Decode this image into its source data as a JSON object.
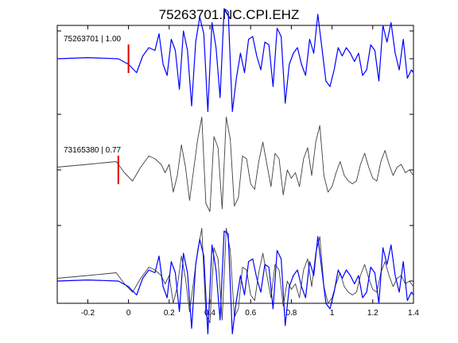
{
  "chart_data": {
    "type": "line",
    "title": "75263701.NC.CPI.EHZ",
    "xlabel": "",
    "ylabel": "",
    "xlim": [
      -0.35,
      1.4
    ],
    "xticks": [
      -0.2,
      0,
      0.2,
      0.4,
      0.6,
      0.8,
      1,
      1.2,
      1.4
    ],
    "xtick_labels": [
      "-0.2",
      "0",
      "0.2",
      "0.4",
      "0.6",
      "0.8",
      "1",
      "1.2",
      "1.4"
    ],
    "ylim": [
      -2.4,
      2.6
    ],
    "grid": false,
    "colors": {
      "primary": "#0000ff",
      "secondary": "#404040",
      "pick": "#e00000",
      "axes": "#000000"
    },
    "traces": [
      {
        "name": "75263701 | 1.00",
        "label": "75263701 | 1.00",
        "color": "#0000ff",
        "offset": 2.0,
        "pick_time": 0.0,
        "x": [
          -0.35,
          -0.2,
          -0.05,
          0.0,
          0.04,
          0.07,
          0.1,
          0.13,
          0.15,
          0.17,
          0.19,
          0.21,
          0.23,
          0.25,
          0.27,
          0.29,
          0.31,
          0.33,
          0.35,
          0.37,
          0.39,
          0.41,
          0.43,
          0.45,
          0.47,
          0.49,
          0.51,
          0.53,
          0.55,
          0.57,
          0.59,
          0.61,
          0.63,
          0.65,
          0.67,
          0.69,
          0.71,
          0.73,
          0.75,
          0.77,
          0.79,
          0.81,
          0.83,
          0.85,
          0.87,
          0.89,
          0.91,
          0.93,
          0.95,
          0.97,
          0.99,
          1.01,
          1.03,
          1.05,
          1.07,
          1.09,
          1.11,
          1.13,
          1.15,
          1.17,
          1.19,
          1.21,
          1.23,
          1.25,
          1.27,
          1.29,
          1.31,
          1.33,
          1.35,
          1.37,
          1.39,
          1.4
        ],
        "y": [
          0.0,
          0.02,
          0.0,
          -0.1,
          -0.25,
          0.05,
          0.2,
          0.15,
          0.45,
          -0.1,
          -0.3,
          0.35,
          0.15,
          -0.55,
          0.5,
          0.15,
          -0.85,
          0.3,
          0.75,
          0.45,
          -0.95,
          0.65,
          0.2,
          -0.7,
          0.9,
          0.85,
          -0.95,
          -0.35,
          0.1,
          -0.25,
          0.35,
          0.4,
          0.05,
          -0.2,
          0.3,
          0.25,
          -0.5,
          0.55,
          0.4,
          -0.8,
          -0.1,
          0.1,
          0.2,
          -0.1,
          -0.3,
          0.35,
          0.1,
          0.8,
          0.2,
          -0.4,
          -0.5,
          -0.2,
          0.2,
          0.05,
          0.2,
          0.1,
          -0.05,
          0.1,
          -0.3,
          -0.2,
          0.25,
          0.15,
          -0.4,
          0.6,
          0.3,
          0.65,
          0.1,
          -0.2,
          0.35,
          -0.35,
          -0.2,
          -0.25
        ]
      },
      {
        "name": "73165380 | 0.77",
        "label": "73165380 | 0.77",
        "color": "#404040",
        "offset": 0.0,
        "pick_time": -0.05,
        "x": [
          -0.35,
          -0.2,
          -0.06,
          -0.02,
          0.02,
          0.06,
          0.1,
          0.13,
          0.16,
          0.18,
          0.2,
          0.22,
          0.24,
          0.26,
          0.28,
          0.3,
          0.32,
          0.34,
          0.36,
          0.38,
          0.4,
          0.42,
          0.44,
          0.46,
          0.48,
          0.5,
          0.52,
          0.54,
          0.56,
          0.58,
          0.6,
          0.62,
          0.64,
          0.66,
          0.68,
          0.7,
          0.72,
          0.74,
          0.76,
          0.78,
          0.8,
          0.82,
          0.84,
          0.86,
          0.88,
          0.9,
          0.92,
          0.94,
          0.96,
          0.98,
          1.0,
          1.02,
          1.04,
          1.06,
          1.08,
          1.1,
          1.12,
          1.14,
          1.16,
          1.18,
          1.2,
          1.22,
          1.24,
          1.26,
          1.28,
          1.3,
          1.32,
          1.34,
          1.36,
          1.38,
          1.4
        ],
        "y": [
          0.05,
          0.1,
          0.15,
          -0.05,
          -0.2,
          0.05,
          0.25,
          0.2,
          0.1,
          -0.05,
          0.1,
          -0.4,
          -0.1,
          0.45,
          0.05,
          -0.55,
          0.0,
          0.55,
          0.95,
          -0.6,
          -0.75,
          0.6,
          0.4,
          -0.7,
          0.95,
          0.55,
          -0.65,
          -0.5,
          0.25,
          0.2,
          -0.25,
          -0.35,
          0.15,
          0.5,
          0.1,
          -0.3,
          0.3,
          0.2,
          -0.45,
          0.0,
          -0.15,
          -0.05,
          -0.3,
          0.2,
          0.4,
          -0.1,
          0.5,
          0.8,
          -0.1,
          -0.4,
          -0.3,
          -0.05,
          0.15,
          -0.1,
          -0.2,
          -0.25,
          -0.2,
          0.1,
          0.3,
          0.05,
          -0.15,
          -0.2,
          0.15,
          0.35,
          0.1,
          -0.1,
          0.05,
          0.1,
          -0.05,
          0.0,
          -0.1
        ]
      },
      {
        "name": "75263701 | 1.00",
        "label": "",
        "color": "#404040",
        "offset": -2.0,
        "overlay": true,
        "x": [
          -0.35,
          -0.2,
          -0.06,
          -0.02,
          0.02,
          0.06,
          0.1,
          0.13,
          0.16,
          0.18,
          0.2,
          0.22,
          0.24,
          0.26,
          0.28,
          0.3,
          0.32,
          0.34,
          0.36,
          0.38,
          0.4,
          0.42,
          0.44,
          0.46,
          0.48,
          0.5,
          0.52,
          0.54,
          0.56,
          0.58,
          0.6,
          0.62,
          0.64,
          0.66,
          0.68,
          0.7,
          0.72,
          0.74,
          0.76,
          0.78,
          0.8,
          0.82,
          0.84,
          0.86,
          0.88,
          0.9,
          0.92,
          0.94,
          0.96,
          0.98,
          1.0,
          1.02,
          1.04,
          1.06,
          1.08,
          1.1,
          1.12,
          1.14,
          1.16,
          1.18,
          1.2,
          1.22,
          1.24,
          1.26,
          1.28,
          1.3,
          1.32,
          1.34,
          1.36,
          1.38,
          1.4
        ],
        "y": [
          0.05,
          0.1,
          0.15,
          -0.05,
          -0.2,
          0.05,
          0.25,
          0.2,
          0.1,
          -0.05,
          0.1,
          -0.4,
          -0.1,
          0.45,
          0.05,
          -0.55,
          0.0,
          0.55,
          0.95,
          -0.6,
          -0.75,
          0.6,
          0.4,
          -0.7,
          0.95,
          0.55,
          -0.65,
          -0.5,
          0.25,
          0.2,
          -0.25,
          -0.35,
          0.15,
          0.5,
          0.1,
          -0.3,
          0.3,
          0.2,
          -0.45,
          0.0,
          -0.15,
          -0.05,
          -0.3,
          0.2,
          0.4,
          -0.1,
          0.5,
          0.8,
          -0.1,
          -0.4,
          -0.3,
          -0.05,
          0.15,
          -0.1,
          -0.2,
          -0.25,
          -0.2,
          0.1,
          0.3,
          0.05,
          -0.15,
          -0.2,
          0.15,
          0.35,
          0.1,
          -0.1,
          0.05,
          0.1,
          -0.05,
          0.0,
          -0.1
        ]
      },
      {
        "name": "75263701 | 1.00",
        "label": "",
        "color": "#0000ff",
        "offset": -2.0,
        "overlay": true,
        "x": [
          -0.35,
          -0.2,
          -0.05,
          0.0,
          0.04,
          0.07,
          0.1,
          0.13,
          0.15,
          0.17,
          0.19,
          0.21,
          0.23,
          0.25,
          0.27,
          0.29,
          0.31,
          0.33,
          0.35,
          0.37,
          0.39,
          0.41,
          0.43,
          0.45,
          0.47,
          0.49,
          0.51,
          0.53,
          0.55,
          0.57,
          0.59,
          0.61,
          0.63,
          0.65,
          0.67,
          0.69,
          0.71,
          0.73,
          0.75,
          0.77,
          0.79,
          0.81,
          0.83,
          0.85,
          0.87,
          0.89,
          0.91,
          0.93,
          0.95,
          0.97,
          0.99,
          1.01,
          1.03,
          1.05,
          1.07,
          1.09,
          1.11,
          1.13,
          1.15,
          1.17,
          1.19,
          1.21,
          1.23,
          1.25,
          1.27,
          1.29,
          1.31,
          1.33,
          1.35,
          1.37,
          1.39,
          1.4
        ],
        "y": [
          0.0,
          0.02,
          0.0,
          -0.1,
          -0.25,
          0.05,
          0.2,
          0.15,
          0.45,
          -0.1,
          -0.3,
          0.35,
          0.15,
          -0.55,
          0.5,
          0.15,
          -0.85,
          0.3,
          0.75,
          0.45,
          -0.95,
          0.65,
          0.2,
          -0.7,
          0.9,
          0.85,
          -0.95,
          -0.35,
          0.1,
          -0.25,
          0.35,
          0.4,
          0.05,
          -0.2,
          0.3,
          0.25,
          -0.5,
          0.55,
          0.4,
          -0.8,
          -0.1,
          0.1,
          0.2,
          -0.1,
          -0.3,
          0.35,
          0.1,
          0.8,
          0.2,
          -0.4,
          -0.5,
          -0.2,
          0.2,
          0.05,
          0.2,
          0.1,
          -0.05,
          0.1,
          -0.3,
          -0.2,
          0.25,
          0.15,
          -0.4,
          0.6,
          0.3,
          0.65,
          0.1,
          -0.2,
          0.35,
          -0.35,
          -0.2,
          -0.25
        ]
      }
    ]
  }
}
